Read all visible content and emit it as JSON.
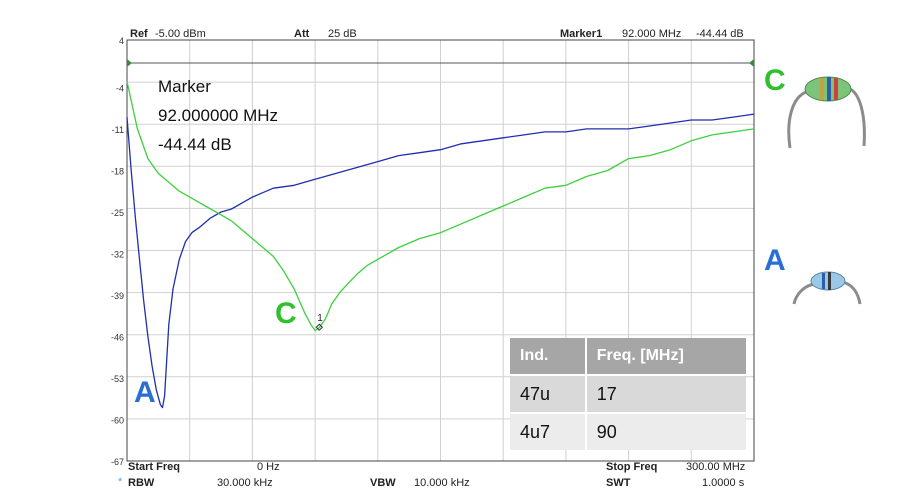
{
  "header": {
    "ref_label": "Ref",
    "ref_value": "-5.00 dBm",
    "att_label": "Att",
    "att_value": "25 dB",
    "marker_label": "Marker1",
    "marker_freq": "92.000 MHz",
    "marker_level": "-44.44 dB"
  },
  "footer": {
    "start_label": "Start Freq",
    "start_value": "0 Hz",
    "stop_label": "Stop Freq",
    "stop_value": "300.00 MHz",
    "rbw_label": "RBW",
    "rbw_value": "30.000 kHz",
    "vbw_label": "VBW",
    "vbw_value": "10.000 kHz",
    "swt_label": "SWT",
    "swt_value": "1.0000 s",
    "rbw_star": "*"
  },
  "marker_readout": {
    "title": "Marker",
    "freq": "92.000000 MHz",
    "level": "-44.44 dB",
    "point_label": "1"
  },
  "annotations": {
    "curve_a": "A",
    "curve_c": "C",
    "photo_c": "C",
    "photo_a": "A"
  },
  "table": {
    "headers": [
      "Ind.",
      "Freq. [MHz]"
    ],
    "rows": [
      [
        "47u",
        "17"
      ],
      [
        "4u7",
        "90"
      ]
    ]
  },
  "colors": {
    "blue_trace": "#1f2fb0",
    "green_trace": "#3ecf3e",
    "label_blue": "#2a6fd6",
    "label_green": "#2fbf2f"
  },
  "chart_data": {
    "type": "line",
    "x_unit": "MHz",
    "y_unit": "dB",
    "xlim": [
      0,
      300
    ],
    "ylim": [
      -67,
      4
    ],
    "yticks": [
      4,
      -4,
      -11,
      -18,
      -25,
      -32,
      -39,
      -46,
      -53,
      -60,
      -67
    ],
    "grid": true,
    "series": [
      {
        "name": "A",
        "color": "#1f2fb0",
        "x": [
          0,
          2,
          4,
          6,
          8,
          10,
          12,
          14,
          16,
          17,
          18,
          19,
          20,
          22,
          25,
          28,
          31,
          35,
          40,
          45,
          50,
          55,
          60,
          70,
          80,
          90,
          100,
          110,
          120,
          130,
          140,
          150,
          160,
          170,
          180,
          190,
          200,
          210,
          220,
          230,
          240,
          250,
          260,
          270,
          280,
          290,
          300
        ],
        "y": [
          -9,
          -18,
          -26,
          -33,
          -40,
          -46,
          -51,
          -55,
          -57.5,
          -58,
          -56,
          -50,
          -44,
          -38,
          -33,
          -30,
          -28.5,
          -27.5,
          -26,
          -25,
          -24.5,
          -23.5,
          -22.5,
          -21,
          -20.5,
          -19.5,
          -18.5,
          -17.5,
          -16.5,
          -15.5,
          -15,
          -14.5,
          -13.5,
          -13,
          -12.5,
          -12,
          -11.5,
          -11.5,
          -11,
          -11,
          -11,
          -10.5,
          -10,
          -9.5,
          -9.5,
          -9,
          -8.5
        ]
      },
      {
        "name": "C",
        "color": "#3ecf3e",
        "x": [
          0,
          5,
          10,
          15,
          20,
          25,
          30,
          35,
          40,
          45,
          50,
          55,
          60,
          65,
          70,
          75,
          80,
          85,
          88,
          90,
          92,
          95,
          98,
          102,
          106,
          110,
          115,
          120,
          130,
          140,
          150,
          160,
          170,
          180,
          190,
          200,
          210,
          220,
          230,
          240,
          250,
          260,
          270,
          280,
          290,
          300
        ],
        "y": [
          -3,
          -11,
          -16,
          -18.5,
          -20,
          -21.5,
          -22.5,
          -23.5,
          -24.5,
          -25.5,
          -26.5,
          -28,
          -29.5,
          -31,
          -32.5,
          -35,
          -38,
          -42,
          -44,
          -45,
          -44.5,
          -43,
          -40.5,
          -38.5,
          -37,
          -35.5,
          -34,
          -33,
          -31,
          -29.5,
          -28.5,
          -27,
          -25.5,
          -24,
          -22.5,
          -21,
          -20.5,
          -19,
          -18,
          -16,
          -15.5,
          -14.5,
          -13,
          -12,
          -11.5,
          -11
        ]
      }
    ],
    "marker": {
      "x": 92,
      "y": -44.44,
      "label": "1"
    }
  }
}
